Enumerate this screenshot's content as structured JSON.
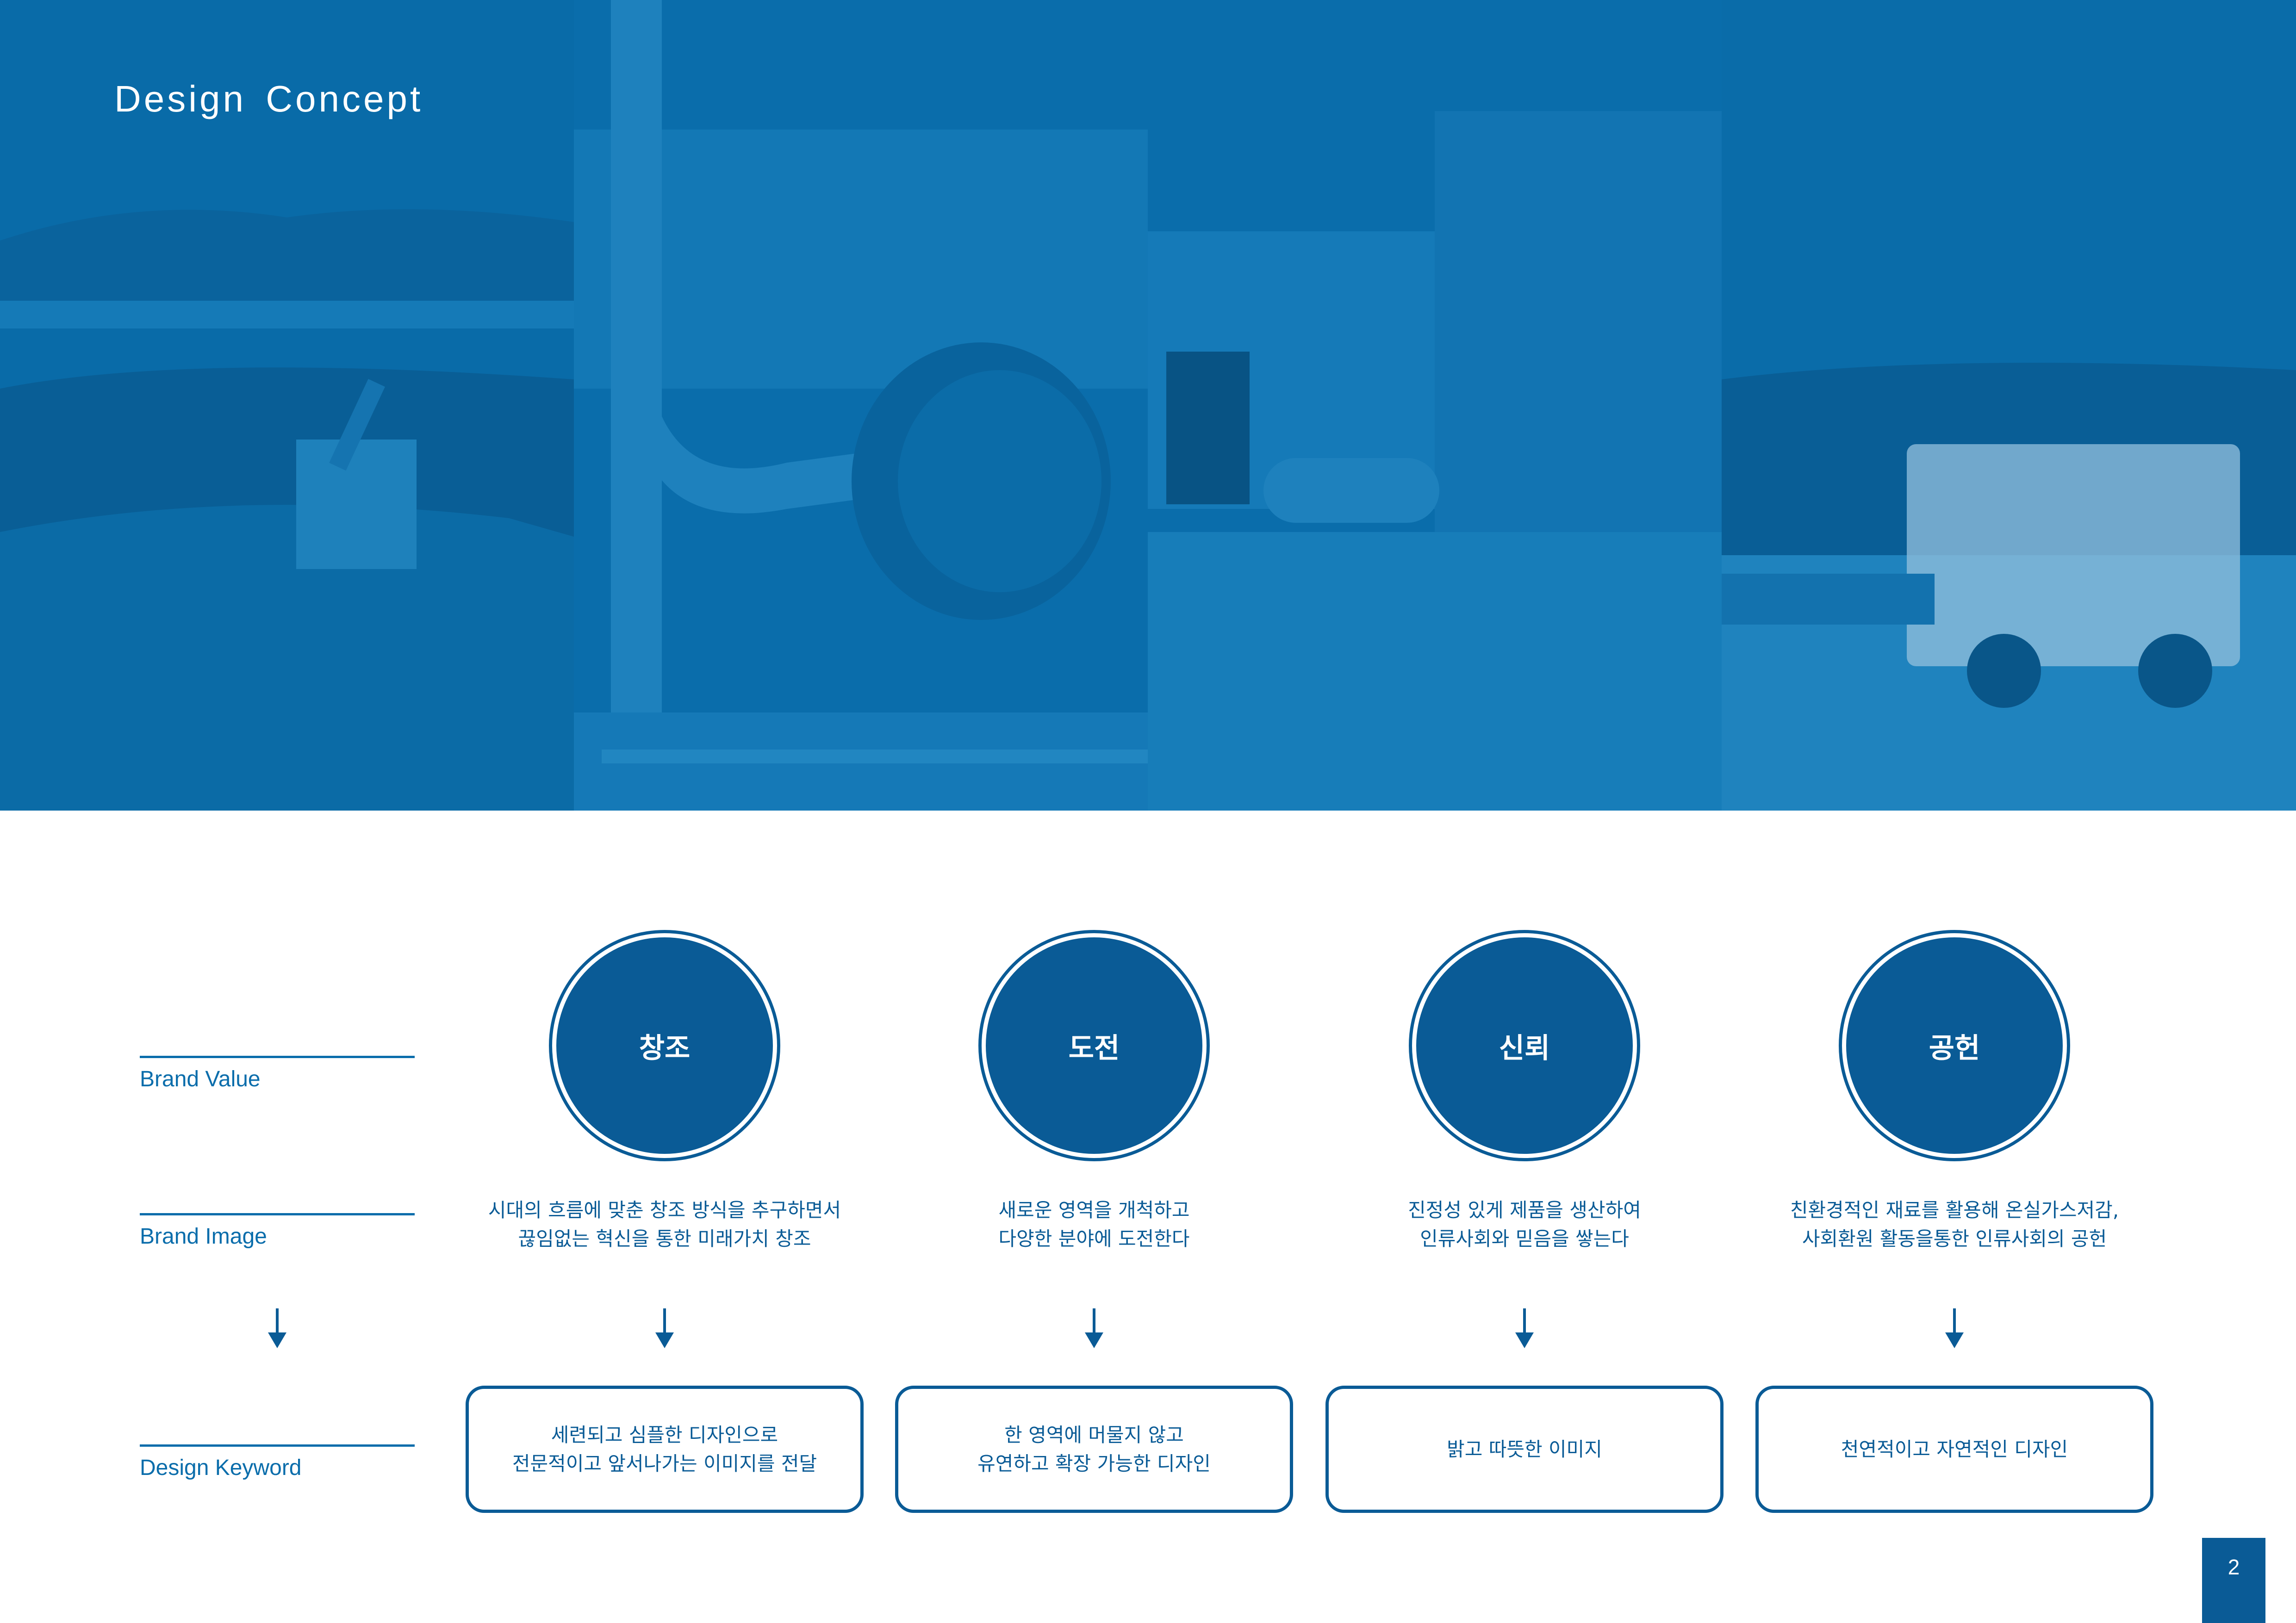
{
  "header": {
    "title": "Design Concept"
  },
  "rows": {
    "brand_value_label": "Brand Value",
    "brand_image_label": "Brand Image",
    "design_keyword_label": "Design Keyword"
  },
  "columns": [
    {
      "value": "창조",
      "image": [
        "시대의 흐름에 맞춘 창조 방식을 추구하면서",
        "끊임없는 혁신을 통한 미래가치 창조"
      ],
      "keyword": [
        "세련되고 심플한 디자인으로",
        "전문적이고 앞서나가는 이미지를 전달"
      ]
    },
    {
      "value": "도전",
      "image": [
        "새로운 영역을 개척하고",
        "다양한 분야에 도전한다"
      ],
      "keyword": [
        "한 영역에 머물지 않고",
        "유연하고 확장 가능한 디자인"
      ]
    },
    {
      "value": "신뢰",
      "image": [
        "진정성 있게 제품을 생산하여",
        "인류사회와 믿음을 쌓는다"
      ],
      "keyword": [
        "밝고 따뜻한 이미지"
      ]
    },
    {
      "value": "공헌",
      "image": [
        "친환경적인 재료를 활용해 온실가스저감,",
        "사회환원 활동을통한 인류사회의 공헌"
      ],
      "keyword": [
        "천연적이고 자연적인 디자인"
      ]
    }
  ],
  "footer": {
    "page_number": "2"
  },
  "colors": {
    "primary": "#0a5b96",
    "hero_tint": "#0a6dab",
    "background": "#ffffff"
  },
  "hero_images": [
    "log-yard-photo",
    "rotary-dryer-photo",
    "factory-building-photo",
    "log-truck-photo"
  ]
}
